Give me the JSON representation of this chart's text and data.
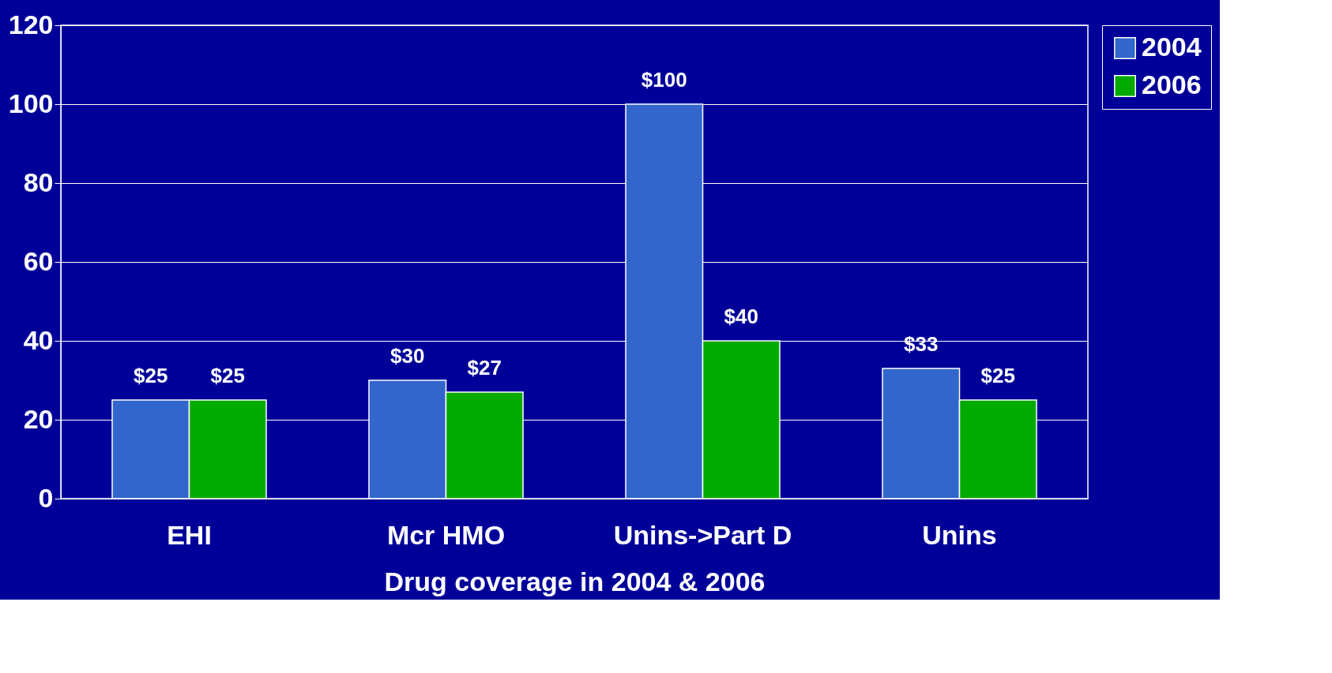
{
  "chart_data": {
    "type": "bar",
    "xlabel": "Drug coverage in 2004 & 2006",
    "categories": [
      "EHI",
      "Mcr HMO",
      "Unins->Part D",
      "Unins"
    ],
    "series": [
      {
        "name": "2004",
        "color": "#3366cc",
        "values": [
          25,
          30,
          100,
          33
        ],
        "value_labels": [
          "$25",
          "$30",
          "$100",
          "$33"
        ]
      },
      {
        "name": "2006",
        "color": "#00aa00",
        "values": [
          25,
          27,
          40,
          25
        ],
        "value_labels": [
          "$25",
          "$27",
          "$40",
          "$25"
        ]
      }
    ],
    "ylim": [
      0,
      120
    ],
    "yticks": [
      0,
      20,
      40,
      60,
      80,
      100,
      120
    ],
    "grid": "y",
    "legend": "right"
  }
}
